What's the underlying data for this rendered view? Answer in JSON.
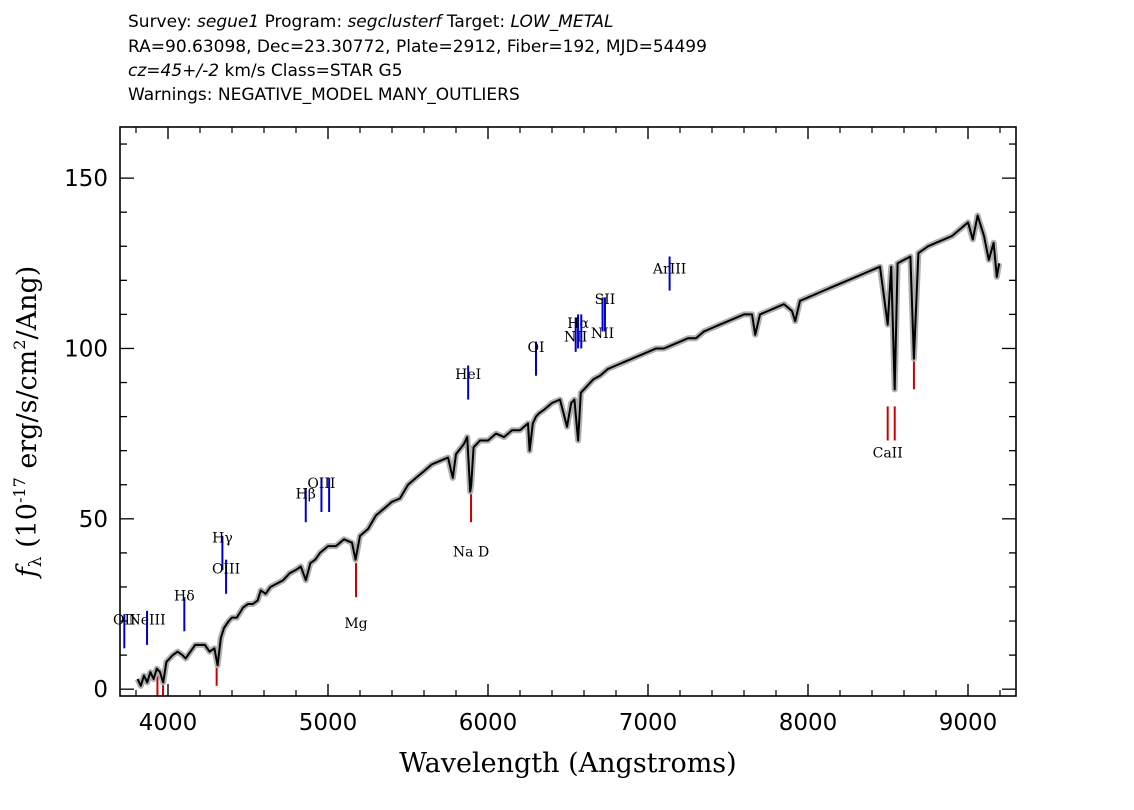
{
  "header": {
    "line1": {
      "survey_label": "Survey: ",
      "survey_value": "segue1",
      "program_label": " Program: ",
      "program_value": "segclusterf",
      "target_label": " Target: ",
      "target_value": "LOW_METAL"
    },
    "line2": "RA=90.63098, Dec=23.30772, Plate=2912, Fiber=192, MJD=54499",
    "line3": {
      "cz_value": "cz=45+/-2",
      "rest": " km/s Class=STAR G5"
    },
    "line4": "Warnings: NEGATIVE_MODEL MANY_OUTLIERS"
  },
  "chart_data": {
    "type": "line",
    "xlabel": "Wavelength (Angstroms)",
    "ylabel": "f_λ (10^-17 erg/s/cm^2/Ang)",
    "xlim": [
      3700,
      9300
    ],
    "ylim": [
      -2,
      165
    ],
    "xticks": [
      4000,
      5000,
      6000,
      7000,
      8000,
      9000
    ],
    "yticks": [
      0,
      50,
      100,
      150
    ],
    "line_color": "#000000",
    "error_band_color": "#b0b0b0",
    "emission_color": "#0000cc",
    "absorption_color": "#cc0000",
    "series": [
      {
        "points": [
          [
            3810,
            3
          ],
          [
            3830,
            1
          ],
          [
            3850,
            4
          ],
          [
            3870,
            2
          ],
          [
            3890,
            5
          ],
          [
            3910,
            3
          ],
          [
            3930,
            6
          ],
          [
            3950,
            5
          ],
          [
            3970,
            2
          ],
          [
            3990,
            8
          ],
          [
            4010,
            9
          ],
          [
            4030,
            10
          ],
          [
            4060,
            11
          ],
          [
            4090,
            10
          ],
          [
            4110,
            9
          ],
          [
            4140,
            11
          ],
          [
            4170,
            13
          ],
          [
            4200,
            13
          ],
          [
            4230,
            13
          ],
          [
            4260,
            11
          ],
          [
            4290,
            12
          ],
          [
            4310,
            7
          ],
          [
            4330,
            15
          ],
          [
            4350,
            18
          ],
          [
            4380,
            20
          ],
          [
            4400,
            21
          ],
          [
            4430,
            21
          ],
          [
            4470,
            24
          ],
          [
            4500,
            25
          ],
          [
            4530,
            25
          ],
          [
            4560,
            26
          ],
          [
            4580,
            29
          ],
          [
            4610,
            28
          ],
          [
            4640,
            30
          ],
          [
            4680,
            31
          ],
          [
            4720,
            32
          ],
          [
            4760,
            34
          ],
          [
            4800,
            35
          ],
          [
            4830,
            36
          ],
          [
            4861,
            32
          ],
          [
            4890,
            37
          ],
          [
            4920,
            38
          ],
          [
            4950,
            40
          ],
          [
            5000,
            42
          ],
          [
            5050,
            42
          ],
          [
            5100,
            44
          ],
          [
            5150,
            43
          ],
          [
            5172,
            38
          ],
          [
            5200,
            45
          ],
          [
            5250,
            47
          ],
          [
            5300,
            51
          ],
          [
            5350,
            53
          ],
          [
            5400,
            55
          ],
          [
            5450,
            56
          ],
          [
            5500,
            60
          ],
          [
            5550,
            62
          ],
          [
            5600,
            64
          ],
          [
            5650,
            66
          ],
          [
            5700,
            67
          ],
          [
            5750,
            68
          ],
          [
            5780,
            62
          ],
          [
            5800,
            69
          ],
          [
            5850,
            72
          ],
          [
            5870,
            74
          ],
          [
            5889,
            58
          ],
          [
            5895,
            60
          ],
          [
            5910,
            71
          ],
          [
            5950,
            73
          ],
          [
            6000,
            73
          ],
          [
            6050,
            75
          ],
          [
            6100,
            74
          ],
          [
            6150,
            76
          ],
          [
            6200,
            76
          ],
          [
            6250,
            78
          ],
          [
            6260,
            70
          ],
          [
            6280,
            78
          ],
          [
            6300,
            80
          ],
          [
            6320,
            81
          ],
          [
            6350,
            82
          ],
          [
            6400,
            84
          ],
          [
            6450,
            85
          ],
          [
            6494,
            77
          ],
          [
            6520,
            84
          ],
          [
            6540,
            85
          ],
          [
            6563,
            73
          ],
          [
            6580,
            87
          ],
          [
            6620,
            89
          ],
          [
            6660,
            91
          ],
          [
            6700,
            92
          ],
          [
            6750,
            94
          ],
          [
            6800,
            95
          ],
          [
            6850,
            96
          ],
          [
            6900,
            97
          ],
          [
            6950,
            98
          ],
          [
            7000,
            99
          ],
          [
            7050,
            100
          ],
          [
            7100,
            100
          ],
          [
            7150,
            101
          ],
          [
            7200,
            102
          ],
          [
            7250,
            103
          ],
          [
            7300,
            103
          ],
          [
            7350,
            105
          ],
          [
            7400,
            106
          ],
          [
            7450,
            107
          ],
          [
            7500,
            108
          ],
          [
            7550,
            109
          ],
          [
            7600,
            110
          ],
          [
            7650,
            110
          ],
          [
            7670,
            104
          ],
          [
            7700,
            110
          ],
          [
            7750,
            111
          ],
          [
            7800,
            112
          ],
          [
            7850,
            113
          ],
          [
            7900,
            111
          ],
          [
            7920,
            108
          ],
          [
            7950,
            114
          ],
          [
            8000,
            115
          ],
          [
            8050,
            116
          ],
          [
            8100,
            117
          ],
          [
            8150,
            118
          ],
          [
            8200,
            119
          ],
          [
            8250,
            120
          ],
          [
            8300,
            121
          ],
          [
            8350,
            122
          ],
          [
            8400,
            123
          ],
          [
            8450,
            124
          ],
          [
            8498,
            107
          ],
          [
            8520,
            124
          ],
          [
            8542,
            88
          ],
          [
            8560,
            125
          ],
          [
            8600,
            126
          ],
          [
            8640,
            127
          ],
          [
            8662,
            97
          ],
          [
            8690,
            128
          ],
          [
            8750,
            130
          ],
          [
            8800,
            131
          ],
          [
            8850,
            132
          ],
          [
            8900,
            133
          ],
          [
            8950,
            135
          ],
          [
            9000,
            137
          ],
          [
            9030,
            132
          ],
          [
            9060,
            139
          ],
          [
            9100,
            133
          ],
          [
            9130,
            126
          ],
          [
            9160,
            131
          ],
          [
            9180,
            121
          ],
          [
            9195,
            125
          ]
        ]
      }
    ],
    "lines": [
      {
        "name": "OII",
        "wave": 3727,
        "kind": "emission",
        "level": 12,
        "label_level": 19
      },
      {
        "name": "NeIII",
        "wave": 3869,
        "kind": "emission",
        "level": 13,
        "label_level": 19
      },
      {
        "name": "Hδ",
        "wave": 4102,
        "kind": "emission",
        "level": 17,
        "label_level": 26
      },
      {
        "name": "Hγ",
        "wave": 4340,
        "kind": "emission",
        "level": 35,
        "label_level": 43
      },
      {
        "name": "OIII",
        "wave": 4363,
        "kind": "emission",
        "level": 28,
        "label_level": 34
      },
      {
        "name": "Hβ",
        "wave": 4861,
        "kind": "emission",
        "level": 49,
        "label_level": 56
      },
      {
        "name": "OIII",
        "wave": 4959,
        "kind": "emission",
        "level": 52,
        "label_level": 59
      },
      {
        "name": "",
        "wave": 5007,
        "kind": "emission",
        "level": 52,
        "label_level": null
      },
      {
        "name": "HeI",
        "wave": 5876,
        "kind": "emission",
        "level": 85,
        "label_level": 91
      },
      {
        "name": "OI",
        "wave": 6300,
        "kind": "emission",
        "level": 92,
        "label_level": 99
      },
      {
        "name": "NII",
        "wave": 6548,
        "kind": "emission",
        "level": 99,
        "label_level": 102
      },
      {
        "name": "Hα",
        "wave": 6563,
        "kind": "emission",
        "level": 100,
        "label_level": 106
      },
      {
        "name": "",
        "wave": 6583,
        "kind": "emission",
        "level": 100,
        "label_level": null
      },
      {
        "name": "NII",
        "wave": 6716,
        "kind": "emission",
        "level": 105,
        "label_level": 103
      },
      {
        "name": "SII",
        "wave": 6731,
        "kind": "emission",
        "level": 105,
        "label_level": 113
      },
      {
        "name": "ArIII",
        "wave": 7135,
        "kind": "emission",
        "level": 117,
        "label_level": 122
      },
      {
        "name": "",
        "wave": 3934,
        "kind": "absorption",
        "level": -5,
        "label_level": null
      },
      {
        "name": "",
        "wave": 3969,
        "kind": "absorption",
        "level": -5,
        "label_level": null
      },
      {
        "name": "",
        "wave": 4304,
        "kind": "absorption",
        "level": 1,
        "label_level": null
      },
      {
        "name": "Mg",
        "wave": 5175,
        "kind": "absorption",
        "level": 27,
        "label_level": 18
      },
      {
        "name": "Na D",
        "wave": 5894,
        "kind": "absorption",
        "level": 49,
        "label_level": 39
      },
      {
        "name": "CaII",
        "wave": 8498,
        "kind": "absorption",
        "level": 73,
        "label_level": 68
      },
      {
        "name": "",
        "wave": 8542,
        "kind": "absorption",
        "level": 73,
        "label_level": null
      },
      {
        "name": "",
        "wave": 8662,
        "kind": "absorption",
        "level": 88,
        "label_level": null
      }
    ]
  }
}
